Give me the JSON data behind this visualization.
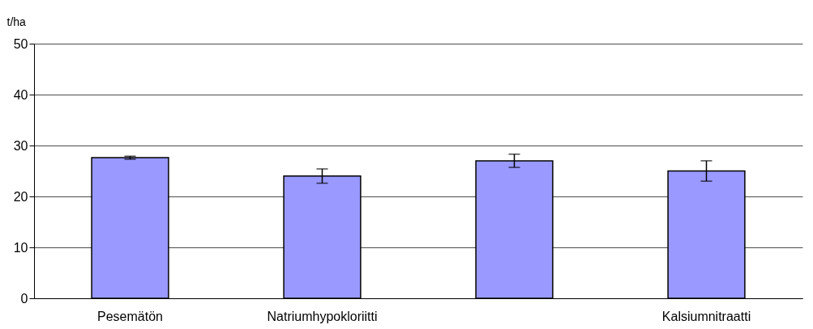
{
  "chart_data": {
    "type": "bar",
    "ylabel": "t/ha",
    "categories": [
      "Pesemätön",
      "Natriumhypokloriitti",
      null,
      "Kalsiumnitraatti"
    ],
    "values": [
      27.6,
      24.0,
      27.0,
      25.0
    ],
    "errors": [
      0.3,
      1.4,
      1.3,
      2.0
    ],
    "color": "#9999ff",
    "ylim": [
      0,
      50
    ],
    "yticks": [
      0,
      10,
      20,
      30,
      40,
      50
    ],
    "grid": "y"
  }
}
